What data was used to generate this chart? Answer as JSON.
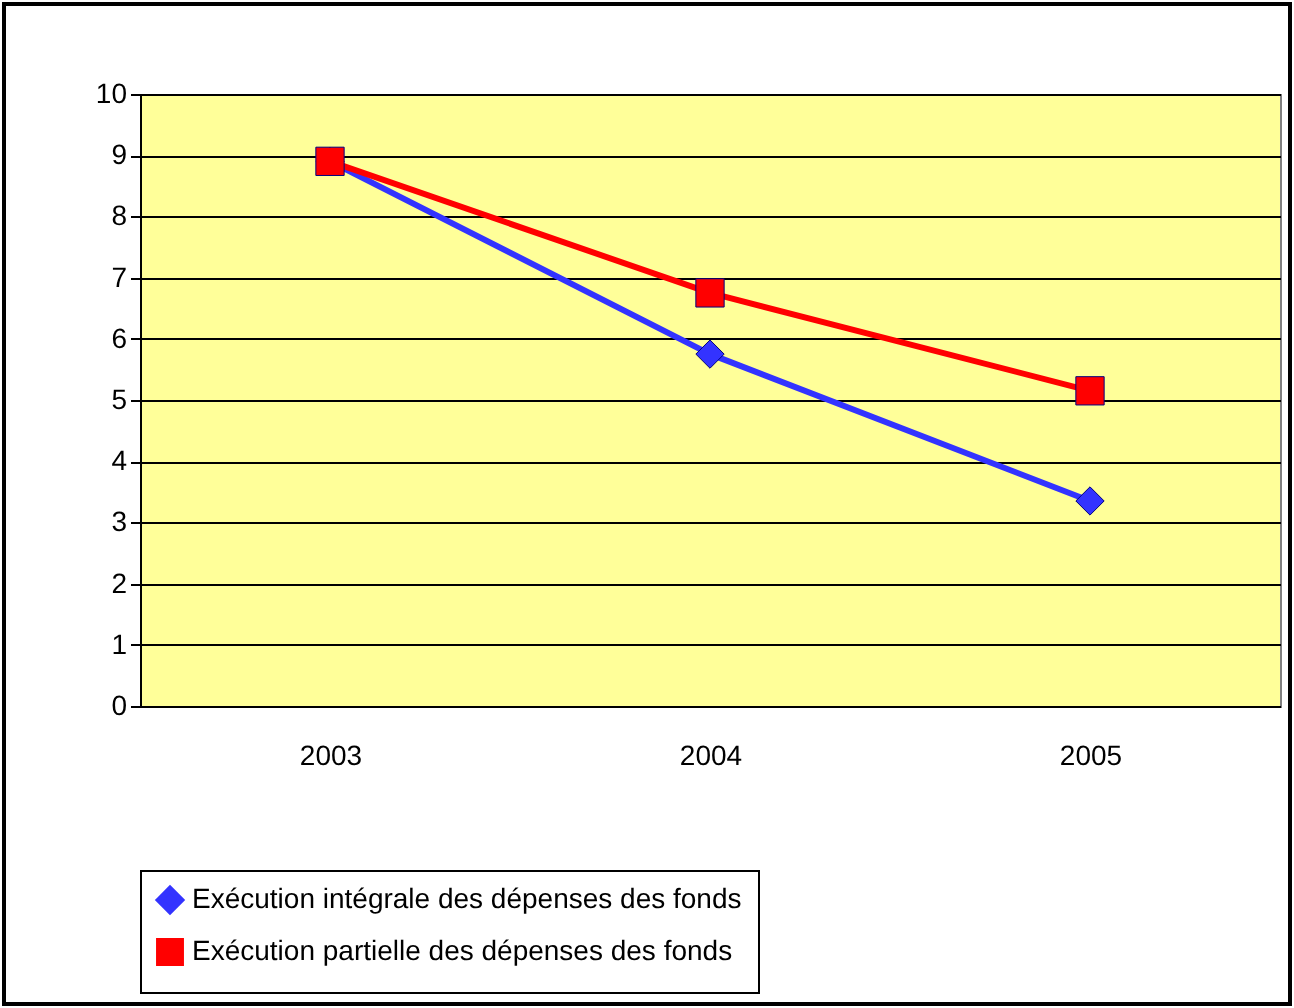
{
  "chart_data": {
    "type": "line",
    "categories": [
      "2003",
      "2004",
      "2005"
    ],
    "series": [
      {
        "name": "Exécution intégrale des dépenses des fonds",
        "color": "#3333ff",
        "marker": "diamond",
        "values": [
          8.9,
          5.75,
          3.35
        ]
      },
      {
        "name": "Exécution partielle des dépenses des fonds",
        "color": "#ff0000",
        "marker": "square",
        "values": [
          8.9,
          6.75,
          5.15
        ]
      }
    ],
    "ylim": [
      0,
      10
    ],
    "yticks": [
      0,
      1,
      2,
      3,
      4,
      5,
      6,
      7,
      8,
      9,
      10
    ],
    "grid": "y",
    "legend": "bottom"
  }
}
